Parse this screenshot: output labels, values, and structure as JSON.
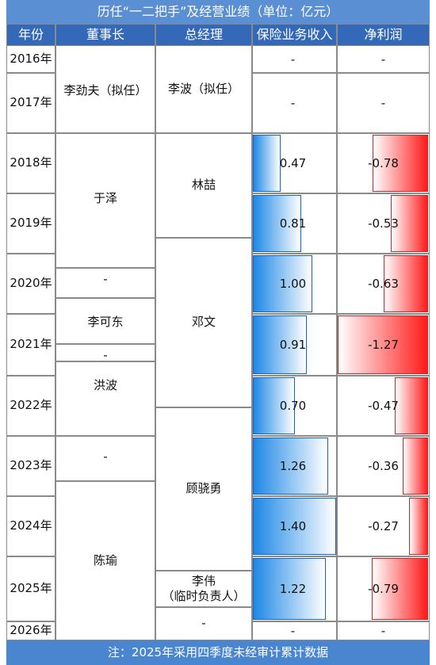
{
  "title": "历任“一二把手”及经营业绩（单位：亿元）",
  "columns": [
    "年份",
    "董事长",
    "总经理",
    "保险业务收入",
    "净利润"
  ],
  "rows": [
    {
      "year": "2016年",
      "revenue": "-",
      "profit": "-"
    },
    {
      "year": "2017年",
      "revenue": "-",
      "profit": "-"
    },
    {
      "year": "2018年",
      "revenue": "0.47",
      "profit": "-0.78"
    },
    {
      "year": "2019年",
      "revenue": "0.81",
      "profit": "-0.53"
    },
    {
      "year": "2020年",
      "revenue": "1.00",
      "profit": "-0.63"
    },
    {
      "year": "2021年",
      "revenue": "0.91",
      "profit": "-1.27"
    },
    {
      "year": "2022年",
      "revenue": "0.70",
      "profit": "-0.47"
    },
    {
      "year": "2023年",
      "revenue": "1.26",
      "profit": "-0.36"
    },
    {
      "year": "2024年",
      "revenue": "1.40",
      "profit": "-0.27"
    },
    {
      "year": "2025年",
      "revenue": "1.22",
      "profit": "-0.79"
    },
    {
      "year": "2026年",
      "revenue": "-",
      "profit": "-"
    }
  ],
  "chairmen": [
    "李劲夫（拟任）",
    "于泽",
    "-",
    "李可东",
    "-",
    "洪波",
    "-",
    "陈瑜"
  ],
  "managers": [
    "李波（拟任）",
    "林喆",
    "邓文",
    "顾骁勇",
    "李伟\n（临时负责人）",
    "-"
  ],
  "note": "注：2025年采用四季度未经审计累计数据"
}
